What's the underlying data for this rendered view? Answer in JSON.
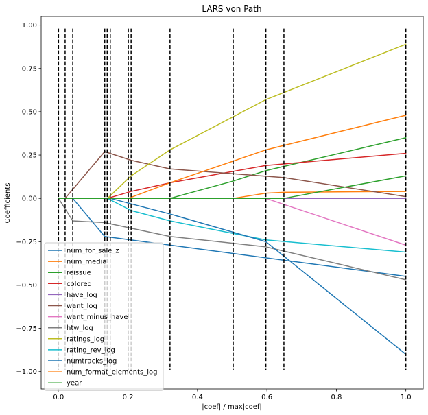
{
  "chart_data": {
    "type": "line",
    "title": "LARS von Path",
    "xlabel": "|coef| / max|coef|",
    "ylabel": "Coefficients",
    "xlim": [
      -0.05,
      1.05
    ],
    "ylim": [
      -1.1,
      1.05
    ],
    "x_ticks": [
      0.0,
      0.2,
      0.4,
      0.6,
      0.8,
      1.0
    ],
    "x_tick_labels": [
      "0.0",
      "0.2",
      "0.4",
      "0.6",
      "0.8",
      "1.0"
    ],
    "y_ticks": [
      -1.0,
      -0.75,
      -0.5,
      -0.25,
      0.0,
      0.25,
      0.5,
      0.75,
      1.0
    ],
    "y_tick_labels": [
      "−1.00",
      "−0.75",
      "−0.50",
      "−0.25",
      "0.00",
      "0.25",
      "0.50",
      "0.75",
      "1.00"
    ],
    "vlines": {
      "x": [
        0.0,
        0.019,
        0.041,
        0.133,
        0.137,
        0.141,
        0.149,
        0.201,
        0.209,
        0.321,
        0.503,
        0.597,
        0.649,
        1.0
      ],
      "ymin": -0.99,
      "ymax": 0.98,
      "style": "dashed",
      "color": "#000000"
    },
    "legend_position": "lower-left",
    "grid": false,
    "series": [
      {
        "name": "num_for_sale_z",
        "color": "#1f77b4",
        "x": [
          0.0,
          0.041,
          0.133,
          1.0
        ],
        "y": [
          0.0,
          0.0,
          -0.22,
          -0.45
        ]
      },
      {
        "name": "num_media",
        "color": "#ff7f0e",
        "x": [
          0.0,
          0.503,
          0.597,
          0.649,
          1.0
        ],
        "y": [
          0.0,
          0.0,
          0.03,
          0.035,
          0.04
        ]
      },
      {
        "name": "reissue",
        "color": "#2ca02c",
        "x": [
          0.0,
          0.321,
          0.503,
          0.597,
          1.0
        ],
        "y": [
          0.0,
          0.0,
          0.1,
          0.16,
          0.35
        ]
      },
      {
        "name": "colored",
        "color": "#d62728",
        "x": [
          0.0,
          0.141,
          0.209,
          0.321,
          0.597,
          1.0
        ],
        "y": [
          0.0,
          0.0,
          0.04,
          0.09,
          0.19,
          0.26
        ]
      },
      {
        "name": "have_log",
        "color": "#9467bd",
        "x": [
          0.0,
          1.0
        ],
        "y": [
          0.0,
          0.0
        ]
      },
      {
        "name": "want_log",
        "color": "#8c564b",
        "x": [
          0.0,
          0.019,
          0.133,
          0.209,
          0.321,
          0.649,
          1.0
        ],
        "y": [
          0.0,
          0.0,
          0.27,
          0.22,
          0.17,
          0.12,
          0.01
        ]
      },
      {
        "name": "want_minus_have",
        "color": "#e377c2",
        "x": [
          0.0,
          0.597,
          1.0
        ],
        "y": [
          0.0,
          0.0,
          -0.27
        ]
      },
      {
        "name": "htw_log",
        "color": "#7f7f7f",
        "x": [
          0.0,
          0.041,
          0.133,
          0.321,
          0.597,
          1.0
        ],
        "y": [
          0.0,
          -0.13,
          -0.14,
          -0.22,
          -0.28,
          -0.47
        ]
      },
      {
        "name": "ratings_log",
        "color": "#bcbd22",
        "x": [
          0.0,
          0.141,
          0.209,
          0.321,
          0.597,
          1.0
        ],
        "y": [
          0.0,
          0.0,
          0.13,
          0.28,
          0.57,
          0.89
        ]
      },
      {
        "name": "rating_rev_log",
        "color": "#17becf",
        "x": [
          0.0,
          0.141,
          0.209,
          0.321,
          0.597,
          1.0
        ],
        "y": [
          0.0,
          -0.0,
          -0.07,
          -0.13,
          -0.24,
          -0.31
        ]
      },
      {
        "name": "numtracks_log",
        "color": "#1f77b4",
        "x": [
          0.0,
          0.149,
          0.321,
          0.597,
          1.0
        ],
        "y": [
          0.0,
          0.0,
          -0.09,
          -0.25,
          -0.9
        ]
      },
      {
        "name": "num_format_elements_log",
        "color": "#ff7f0e",
        "x": [
          0.0,
          0.201,
          0.321,
          0.597,
          1.0
        ],
        "y": [
          0.0,
          0.0,
          0.09,
          0.28,
          0.48
        ]
      },
      {
        "name": "year",
        "color": "#2ca02c",
        "x": [
          0.0,
          0.649,
          1.0
        ],
        "y": [
          0.0,
          0.0,
          0.13
        ]
      }
    ]
  }
}
